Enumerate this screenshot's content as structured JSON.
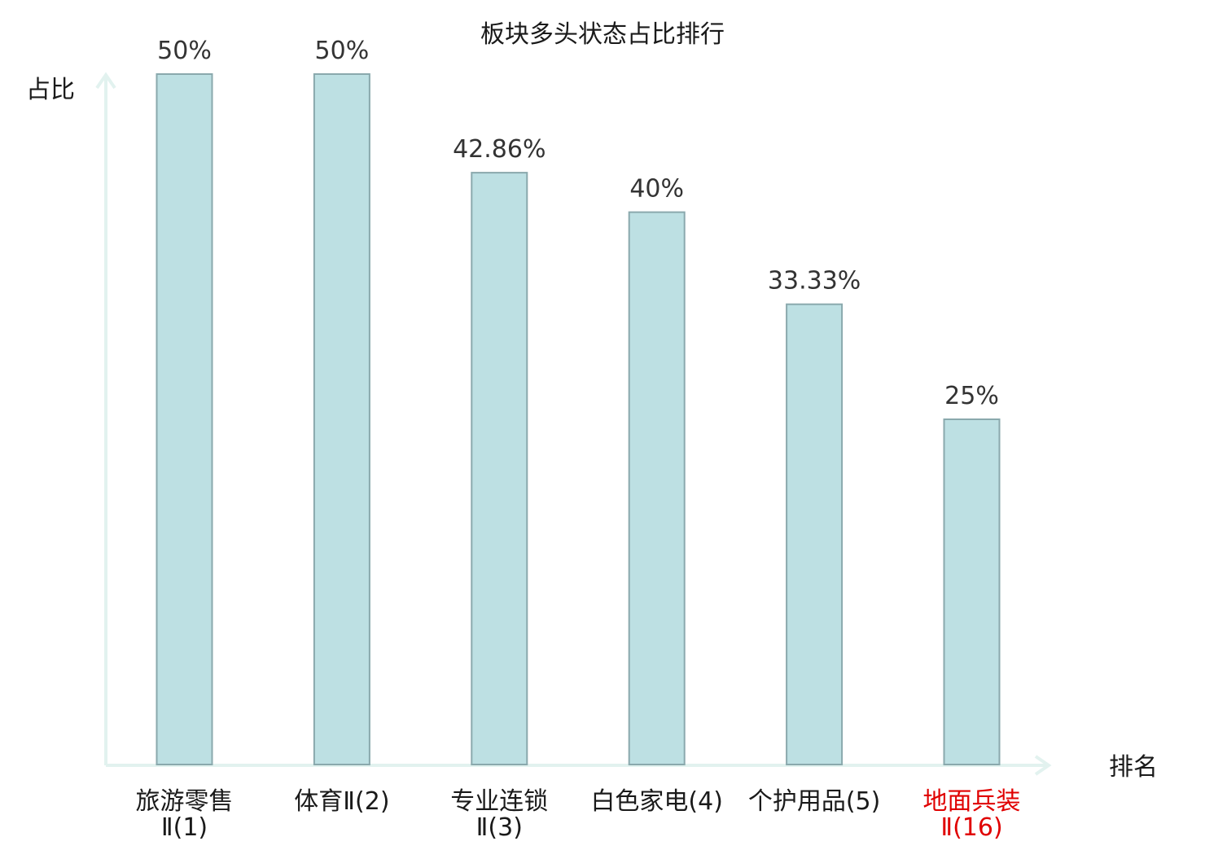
{
  "chart_data": {
    "type": "bar",
    "title": "板块多头状态占比排行",
    "xlabel": "排名",
    "ylabel": "占比",
    "ylim": [
      0,
      50
    ],
    "grid": false,
    "categories": [
      [
        "旅游零售",
        "Ⅱ(1)"
      ],
      [
        "体育Ⅱ(2)"
      ],
      [
        "专业连锁",
        "Ⅱ(3)"
      ],
      [
        "白色家电(4)"
      ],
      [
        "个护用品(5)"
      ],
      [
        "地面兵装",
        "Ⅱ(16)"
      ]
    ],
    "values": [
      50,
      50,
      42.86,
      40,
      33.33,
      25
    ],
    "value_labels": [
      "50%",
      "50%",
      "42.86%",
      "40%",
      "33.33%",
      "25%"
    ],
    "highlight_index": 5
  },
  "colors": {
    "bar_fill": "#bde0e3",
    "bar_stroke": "#8aa9ad",
    "axis": "#e2f2ef",
    "text": "#1a1a1a",
    "value_label": "#333333",
    "highlight_label": "#e00000"
  }
}
